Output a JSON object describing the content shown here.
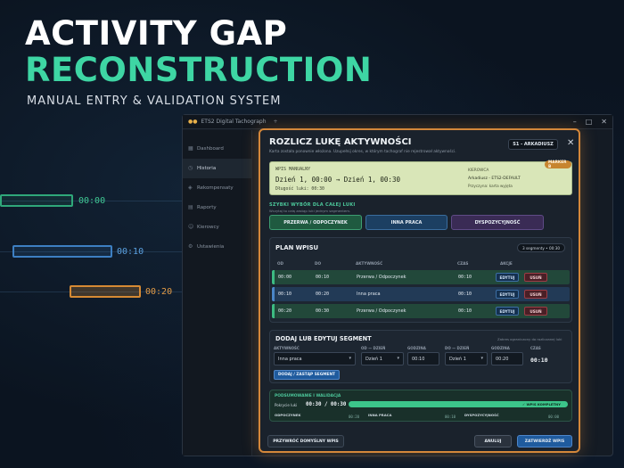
{
  "hero": {
    "title_line1": "ACTIVITY GAP",
    "title_line2": "RECONSTRUCTION",
    "subtitle": "MANUAL ENTRY & VALIDATION SYSTEM"
  },
  "timeline_labels": [
    "00:00",
    "00:10",
    "00:20"
  ],
  "app": {
    "title": "ETS2 Digital Tachograph",
    "sidebar": [
      {
        "label": "Dashboard",
        "icon": "dashboard-icon"
      },
      {
        "label": "Historia",
        "icon": "history-icon"
      },
      {
        "label": "Rekompensaty",
        "icon": "compensation-icon"
      },
      {
        "label": "Raporty",
        "icon": "reports-icon"
      },
      {
        "label": "Kierowcy",
        "icon": "drivers-icon"
      },
      {
        "label": "Ustawienia",
        "icon": "settings-icon"
      }
    ]
  },
  "modal": {
    "title": "ROZLICZ LUKĘ AKTYWNOŚCI",
    "description": "Karta została ponownie włożona. Uzupełnij okres, w którym tachograf nie rejestrował aktywności.",
    "slot_badge": "S1 - ARKADIUSZ",
    "entry": {
      "label": "WPIS MANUALNY",
      "range": "Dzień 1, 00:00  →  Dzień 1, 00:30",
      "duration": "Długość luki: 00:30",
      "driver_label": "KIEROWCA",
      "driver": "Arkadiusz - ETS2-DEFAULT",
      "reason": "Przyczyna: karta wyjęta",
      "tag": "MARKER B"
    },
    "quick": {
      "title": "SZYBKI WYBÓR DLA CAŁEJ LUKI",
      "description": "Wczytaj to całą zastąp luki jednym segmentem.",
      "buttons": [
        "PRZERWA / ODPOCZYNEK",
        "INNA PRACA",
        "DYSPOZYCYJNOŚĆ"
      ]
    },
    "plan": {
      "title": "PLAN WPISU",
      "badge": "3 segmenty • 00:30",
      "headers": [
        "OD",
        "DO",
        "AKTYWNOŚĆ",
        "CZAS",
        "AKCJE"
      ],
      "rows": [
        {
          "from": "00:00",
          "to": "00:10",
          "activity": "Przerwa / Odpoczynek",
          "time": "00:10"
        },
        {
          "from": "00:10",
          "to": "00:20",
          "activity": "Inna praca",
          "time": "00:10"
        },
        {
          "from": "00:20",
          "to": "00:30",
          "activity": "Przerwa / Odpoczynek",
          "time": "00:10"
        }
      ],
      "edit_label": "EDYTUJ",
      "delete_label": "USUŃ"
    },
    "add": {
      "title": "DODAJ LUB EDYTUJ SEGMENT",
      "hint": "Zakres ograniczony do rozliczanej luki",
      "activity_label": "AKTYWNOŚĆ",
      "activity_value": "Inna praca",
      "from_day_label": "OD — DZIEŃ",
      "from_day_value": "Dzień 1",
      "from_time_label": "GODZINA",
      "from_time_value": "00:10",
      "to_day_label": "DO — DZIEŃ",
      "to_day_value": "Dzień 1",
      "to_time_label": "GODZINA",
      "to_time_value": "00:20",
      "time_label": "CZAS",
      "time_value": "00:10",
      "submit_label": "DODAJ / ZASTĄP SEGMENT"
    },
    "summary": {
      "title": "PODSUMOWANIE I WALIDACJA",
      "coverage_label": "Pokrycie luki",
      "coverage_value": "00:30 / 00:30",
      "coverage_fraction": 1.0,
      "status": "✓ WPIS KOMPLETNY",
      "categories": [
        {
          "label": "ODPOCZYNEK",
          "value": "00:20"
        },
        {
          "label": "INNA PRACA",
          "value": "00:10"
        },
        {
          "label": "DYSPOZYCYJNOŚĆ",
          "value": "00:00"
        }
      ]
    },
    "footer": {
      "reset_label": "PRZYWRÓĆ DOMYŚLNY WPIS",
      "cancel_label": "ANULUJ",
      "confirm_label": "ZATWIERDŹ WPIS"
    }
  },
  "colors": {
    "accent_green": "#3ed6a4",
    "accent_orange": "#d4873a",
    "accent_blue": "#4a86c8"
  }
}
